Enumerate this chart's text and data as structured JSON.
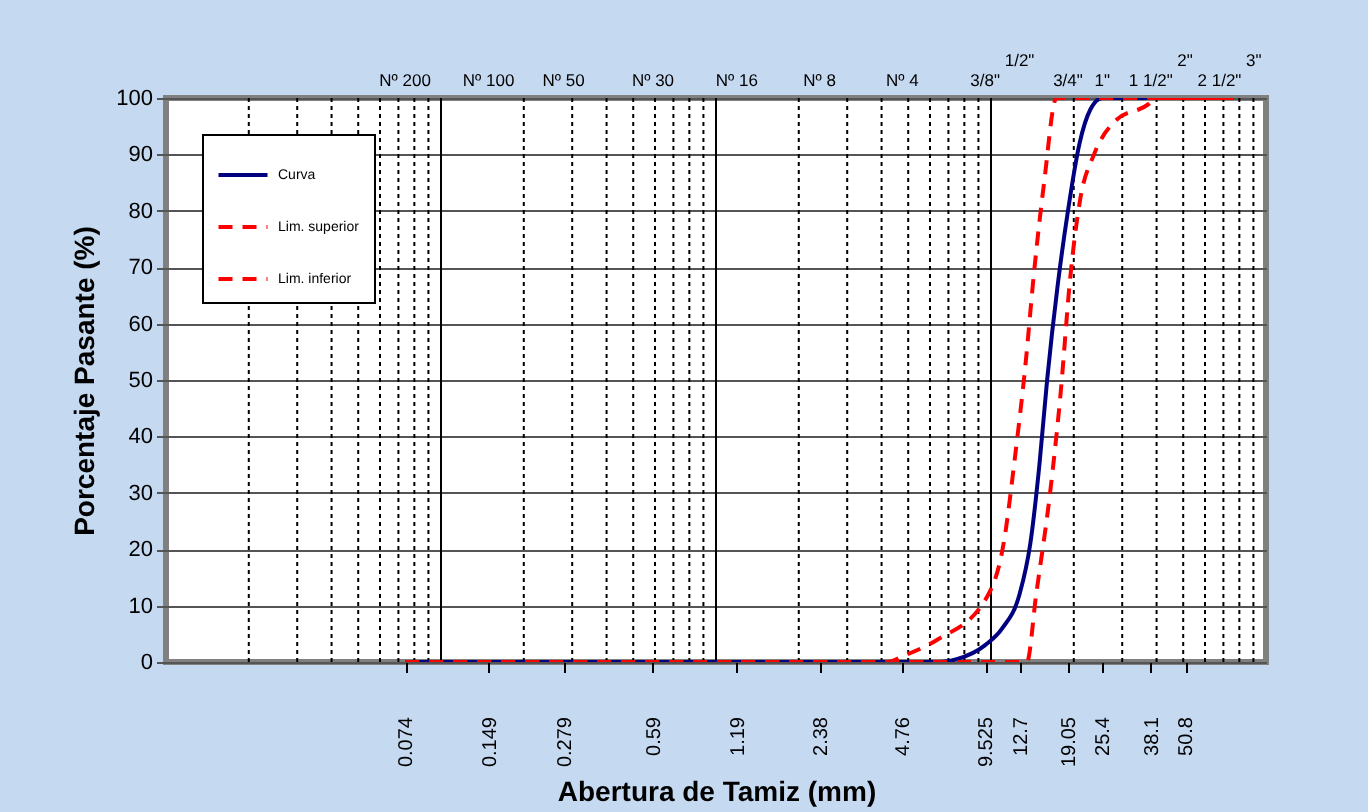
{
  "chart_data": {
    "type": "line",
    "xlabel": "Abertura de Tamiz (mm)",
    "ylabel": "Porcentaje Pasante (%)",
    "log": "x",
    "xlim": [
      0.01,
      100
    ],
    "xticks": [
      0.074,
      0.149,
      0.279,
      0.59,
      1.19,
      2.38,
      4.76,
      9.525,
      12.7,
      19.05,
      25.4,
      38.1,
      50.8
    ],
    "annotations": [
      "Nº 200",
      "Nº 100",
      "Nº 50",
      "Nº 30",
      "Nº 16",
      "Nº 8",
      "Nº 4",
      "3/8\"",
      "1/2\"",
      "3/4\"",
      "1\"",
      "1 1/2\"",
      "2\"",
      "2 1/2\"",
      "3\""
    ],
    "ylim": [
      0,
      100
    ],
    "yticks": [
      0,
      10,
      20,
      30,
      40,
      50,
      60,
      70,
      80,
      90,
      100
    ],
    "grid": true,
    "legend": "top left",
    "series": [
      {
        "name": "Curva",
        "color": "#000080",
        "line_style": "solid",
        "x": [
          0.074,
          4.76,
          6.5,
          7.5,
          9.525,
          11,
          12.7,
          13.9,
          15,
          16,
          17.5,
          19.05,
          21,
          23,
          25.4,
          76.2
        ],
        "values": [
          0,
          0,
          0,
          0.5,
          3,
          6,
          12,
          21,
          35,
          50,
          67,
          80,
          92,
          98,
          100,
          100
        ]
      },
      {
        "name": "Lim. superior",
        "color": "#ff0000",
        "line_style": "dashed",
        "x": [
          0.074,
          4.2,
          4.76,
          6.4,
          9.525,
          11.2,
          12.2,
          13.3,
          14.4,
          15.6,
          17.3,
          76.2
        ],
        "values": [
          0,
          0,
          1,
          4,
          11,
          22,
          36,
          52,
          70,
          85,
          100,
          100
        ]
      },
      {
        "name": "Lim. inferior",
        "color": "#ff0000",
        "line_style": "dashed",
        "x": [
          0.074,
          12.7,
          13.5,
          14.6,
          16.4,
          17.9,
          19.4,
          21.1,
          23.7,
          28.4,
          37.6,
          39.6,
          76.2
        ],
        "values": [
          0,
          0,
          0,
          12,
          30,
          47.5,
          68,
          82,
          90,
          96,
          99,
          100,
          100
        ]
      }
    ]
  }
}
